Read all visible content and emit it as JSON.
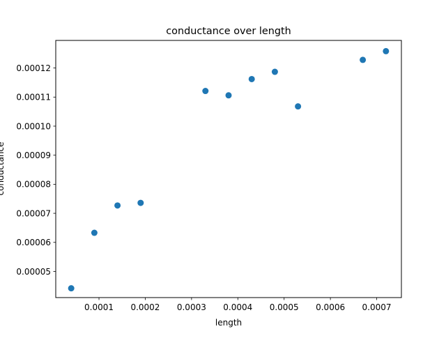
{
  "chart_data": {
    "type": "scatter",
    "title": "conductance over length",
    "xlabel": "length",
    "ylabel": "conductance",
    "xlim": [
      6.6e-06,
      0.0007534
    ],
    "ylim": [
      4.1e-05,
      0.0001295
    ],
    "xticks": [
      0.0001,
      0.0002,
      0.0003,
      0.0004,
      0.0005,
      0.0006,
      0.0007
    ],
    "xtick_labels": [
      "0.0001",
      "0.0002",
      "0.0003",
      "0.0004",
      "0.0005",
      "0.0006",
      "0.0007"
    ],
    "yticks": [
      5e-05,
      6e-05,
      7e-05,
      8e-05,
      9e-05,
      0.0001,
      0.00011,
      0.00012
    ],
    "ytick_labels": [
      "0.00005",
      "0.00006",
      "0.00007",
      "0.00008",
      "0.00009",
      "0.00010",
      "0.00011",
      "0.00012"
    ],
    "grid": false,
    "marker_color": "#1f77b4",
    "x": [
      4e-05,
      9e-05,
      0.00014,
      0.00019,
      0.00033,
      0.00038,
      0.00043,
      0.00048,
      0.00053,
      0.00067,
      0.00072
    ],
    "y": [
      4.42e-05,
      6.33e-05,
      7.27e-05,
      7.36e-05,
      0.0001121,
      0.0001106,
      0.0001162,
      0.0001187,
      0.0001068,
      0.0001228,
      0.0001258
    ]
  }
}
